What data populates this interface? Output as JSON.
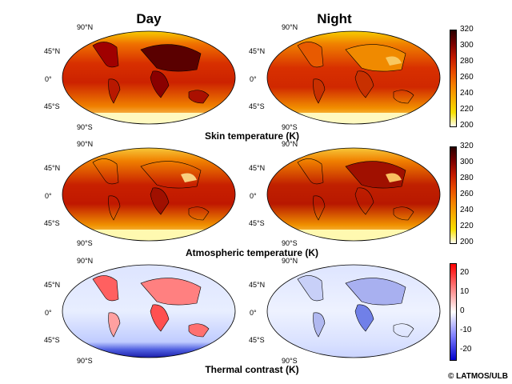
{
  "columns": {
    "day": "Day",
    "night": "Night"
  },
  "lat_labels": {
    "n90": "90°N",
    "n45": "45°N",
    "eq": "0°",
    "s45": "45°S",
    "s90": "90°S"
  },
  "rows": [
    {
      "id": "skin",
      "title": "Skin temperature (K)",
      "ticks": [
        "320",
        "300",
        "280",
        "260",
        "240",
        "220",
        "200"
      ],
      "colormap": "heat"
    },
    {
      "id": "atmo",
      "title": "Atmospheric temperature (K)",
      "ticks": [
        "320",
        "300",
        "280",
        "260",
        "240",
        "220",
        "200"
      ],
      "colormap": "heat"
    },
    {
      "id": "contrast",
      "title": "Thermal contrast (K)",
      "ticks": [
        "20",
        "10",
        "0",
        "-10",
        "-20"
      ],
      "colormap": "diverging"
    }
  ],
  "colors": {
    "heat": [
      "#2a0000",
      "#7a0000",
      "#c41a00",
      "#e84a00",
      "#f58000",
      "#f7b000",
      "#f8e000",
      "#fffff0"
    ],
    "diverging": [
      "#ff0000",
      "#ff8080",
      "#ffffff",
      "#8080ff",
      "#0000cc"
    ]
  },
  "copyright": "© LATMOS/ULB"
}
